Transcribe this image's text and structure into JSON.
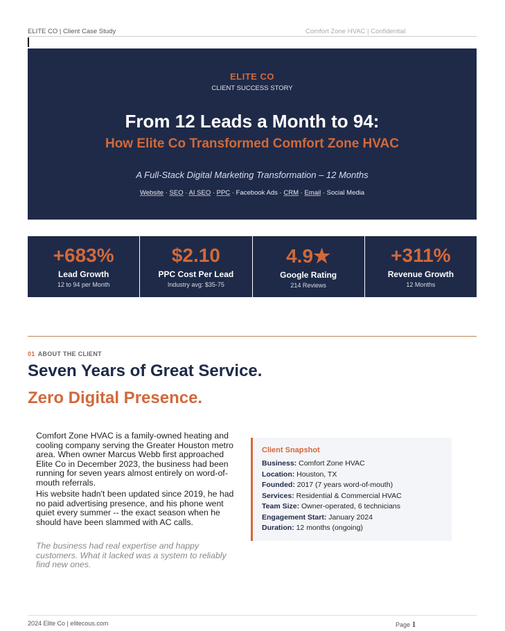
{
  "header": {
    "left": "ELITE CO  |  Client Case Study",
    "right": "Comfort Zone HVAC  |  Confidential"
  },
  "hero": {
    "brand": "ELITE CO",
    "subtitle": "CLIENT SUCCESS STORY",
    "title": "From 12 Leads a Month to 94:",
    "title2": "How Elite Co Transformed Comfort Zone HVAC",
    "tagline": "A Full-Stack Digital Marketing Transformation  –  12 Months",
    "services": [
      "Website",
      "SEO",
      "AI SEO",
      "PPC",
      "Facebook Ads",
      "CRM",
      "Email",
      "Social Media"
    ]
  },
  "stats": [
    {
      "value": "+683%",
      "label": "Lead Growth",
      "sub": "12 to 94 per Month"
    },
    {
      "value": "$2.10",
      "label": "PPC Cost Per Lead",
      "sub": "Industry avg: $35-75"
    },
    {
      "value": "4.9★",
      "label": "Google Rating",
      "sub": "214 Reviews"
    },
    {
      "value": "+311%",
      "label": "Revenue Growth",
      "sub": "12 Months"
    }
  ],
  "section": {
    "number": "01",
    "label": "ABOUT THE CLIENT",
    "heading1": "Seven Years of Great Service.",
    "heading2": "Zero Digital Presence.",
    "paragraphs": [
      "Comfort Zone HVAC is a family-owned heating and cooling company serving the Greater Houston metro area. When owner Marcus Webb first approached Elite Co in December 2023, the business had been running for seven years almost entirely on word-of-mouth referrals.",
      "His website hadn't been updated since 2019, he had no paid advertising presence, and his phone went quiet every summer -- the exact season when he should have been slammed with AC calls."
    ],
    "quote": "The business had real expertise and happy customers. What it lacked was a system to reliably find new ones."
  },
  "snapshot": {
    "title": "Client Snapshot",
    "rows": [
      {
        "k": "Business:",
        "v": "Comfort Zone HVAC"
      },
      {
        "k": "Location:",
        "v": "Houston, TX"
      },
      {
        "k": "Founded:",
        "v": "2017 (7 years word-of-mouth)"
      },
      {
        "k": "Services:",
        "v": "Residential & Commercial HVAC"
      },
      {
        "k": "Team Size:",
        "v": "Owner-operated, 6 technicians"
      },
      {
        "k": "Engagement Start:",
        "v": "January 2024"
      },
      {
        "k": "Duration:",
        "v": "12 months (ongoing)"
      }
    ]
  },
  "footer": {
    "left": "2024 Elite Co  |  elitecous.com",
    "page_label": "Page",
    "page": "1"
  }
}
